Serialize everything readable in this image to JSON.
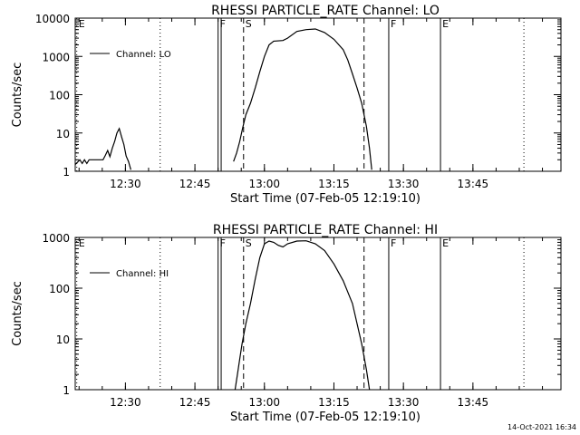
{
  "footer": {
    "timestamp": "14-Oct-2021 16:34"
  },
  "chart_data": [
    {
      "type": "line",
      "title": "RHESSI PARTICLE_RATE Channel: LO",
      "xlabel": "Start Time (07-Feb-05 12:19:10)",
      "ylabel": "Counts/sec",
      "xlim": [
        "12:19:10",
        "14:04:00"
      ],
      "ylim": [
        1,
        10000
      ],
      "yscale": "log",
      "x_ticks": [
        "12:30",
        "12:45",
        "13:00",
        "13:15",
        "13:30",
        "13:45"
      ],
      "y_ticks": [
        "1",
        "10",
        "100",
        "1000",
        "10000"
      ],
      "legend": {
        "position": "top-left",
        "entries": [
          "Channel: LO"
        ]
      },
      "grid": false,
      "markers": [
        {
          "label": "E",
          "time": "12:19:30",
          "style": "dotted"
        },
        {
          "label": "",
          "time": "12:37:30",
          "style": "dotted"
        },
        {
          "label": "F",
          "time": "12:50:00",
          "style": "solid"
        },
        {
          "label": "",
          "time": "12:50:40",
          "style": "solid"
        },
        {
          "label": "S",
          "time": "12:55:30",
          "style": "dashed"
        },
        {
          "label": "",
          "time": "13:21:30",
          "style": "dashed"
        },
        {
          "label": "F",
          "time": "13:26:50",
          "style": "solid"
        },
        {
          "label": "E",
          "time": "13:38:00",
          "style": "solid"
        },
        {
          "label": "",
          "time": "13:56:00",
          "style": "dotted"
        }
      ],
      "series": [
        {
          "segments": [
            [
              [
                "12:19:10",
                1.5
              ],
              [
                "12:20:10",
                2
              ],
              [
                "12:20:40",
                1.6
              ],
              [
                "12:21:10",
                2
              ],
              [
                "12:21:40",
                1.6
              ],
              [
                "12:22:10",
                2
              ],
              [
                "12:23:10",
                2
              ],
              [
                "12:24:10",
                2
              ],
              [
                "12:25:10",
                2
              ],
              [
                "12:25:40",
                2.6
              ],
              [
                "12:26:10",
                3.5
              ],
              [
                "12:26:40",
                2.4
              ],
              [
                "12:27:10",
                4
              ],
              [
                "12:27:40",
                6
              ],
              [
                "12:28:10",
                10
              ],
              [
                "12:28:40",
                13
              ],
              [
                "12:29:10",
                8
              ],
              [
                "12:29:40",
                5
              ],
              [
                "12:30:10",
                2.5
              ],
              [
                "12:30:40",
                1.8
              ],
              [
                "12:31:10",
                1.1
              ]
            ],
            [
              [
                "12:53:20",
                1.8
              ],
              [
                "12:54:00",
                3
              ],
              [
                "12:54:40",
                6
              ],
              [
                "12:55:20",
                14
              ],
              [
                "12:56:00",
                30
              ],
              [
                "12:57:00",
                60
              ],
              [
                "12:58:00",
                150
              ],
              [
                "12:59:00",
                400
              ],
              [
                "13:00:00",
                1000
              ],
              [
                "13:01:00",
                2000
              ],
              [
                "13:02:00",
                2500
              ],
              [
                "13:04:00",
                2600
              ],
              [
                "13:05:00",
                3000
              ],
              [
                "13:07:00",
                4500
              ],
              [
                "13:09:00",
                5000
              ],
              [
                "13:11:00",
                5200
              ],
              [
                "13:13:00",
                4200
              ],
              [
                "13:15:00",
                2800
              ],
              [
                "13:17:00",
                1500
              ],
              [
                "13:18:00",
                800
              ],
              [
                "13:19:00",
                350
              ],
              [
                "13:20:00",
                150
              ],
              [
                "13:21:00",
                60
              ],
              [
                "13:22:00",
                15
              ],
              [
                "13:22:40",
                4
              ],
              [
                "13:23:10",
                1.1
              ]
            ]
          ]
        }
      ]
    },
    {
      "type": "line",
      "title": "RHESSI PARTICLE_RATE Channel: HI",
      "xlabel": "Start Time (07-Feb-05 12:19:10)",
      "ylabel": "Counts/sec",
      "xlim": [
        "12:19:10",
        "14:04:00"
      ],
      "ylim": [
        1,
        1000
      ],
      "yscale": "log",
      "x_ticks": [
        "12:30",
        "12:45",
        "13:00",
        "13:15",
        "13:30",
        "13:45"
      ],
      "y_ticks": [
        "1",
        "10",
        "100",
        "1000"
      ],
      "legend": {
        "position": "top-left",
        "entries": [
          "Channel: HI"
        ]
      },
      "grid": false,
      "markers": [
        {
          "label": "E",
          "time": "12:19:30",
          "style": "dotted"
        },
        {
          "label": "",
          "time": "12:37:30",
          "style": "dotted"
        },
        {
          "label": "F",
          "time": "12:50:00",
          "style": "solid"
        },
        {
          "label": "",
          "time": "12:50:40",
          "style": "solid"
        },
        {
          "label": "S",
          "time": "12:55:30",
          "style": "dashed"
        },
        {
          "label": "",
          "time": "13:21:30",
          "style": "dashed"
        },
        {
          "label": "F",
          "time": "13:26:50",
          "style": "solid"
        },
        {
          "label": "E",
          "time": "13:38:00",
          "style": "solid"
        },
        {
          "label": "",
          "time": "13:56:00",
          "style": "dotted"
        }
      ],
      "series": [
        {
          "segments": [
            [
              [
                "12:53:40",
                1
              ],
              [
                "12:54:10",
                2
              ],
              [
                "12:54:40",
                4
              ],
              [
                "12:55:10",
                8
              ],
              [
                "12:56:00",
                20
              ],
              [
                "12:57:00",
                50
              ],
              [
                "12:58:00",
                150
              ],
              [
                "12:59:00",
                400
              ],
              [
                "13:00:00",
                750
              ],
              [
                "13:01:00",
                850
              ],
              [
                "13:02:00",
                800
              ],
              [
                "13:03:00",
                700
              ],
              [
                "13:04:00",
                650
              ],
              [
                "13:05:00",
                750
              ],
              [
                "13:07:00",
                850
              ],
              [
                "13:09:00",
                860
              ],
              [
                "13:11:00",
                750
              ],
              [
                "13:13:00",
                550
              ],
              [
                "13:15:00",
                300
              ],
              [
                "13:17:00",
                140
              ],
              [
                "13:19:00",
                50
              ],
              [
                "13:20:00",
                20
              ],
              [
                "13:21:00",
                8
              ],
              [
                "13:22:00",
                2.5
              ],
              [
                "13:22:40",
                1
              ]
            ]
          ]
        }
      ]
    }
  ]
}
